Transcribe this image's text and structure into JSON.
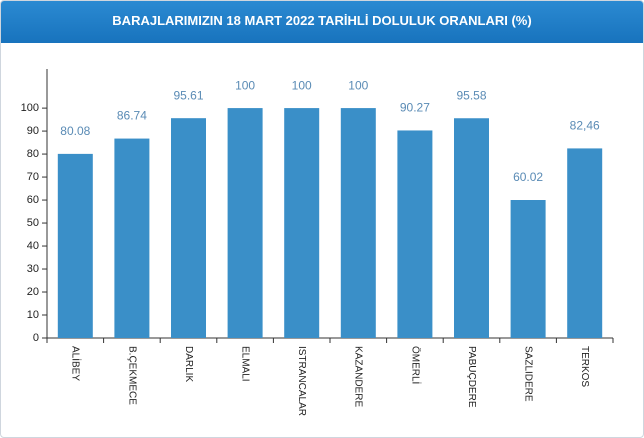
{
  "chart_data": {
    "type": "bar",
    "title": "BARAJLARIMIZIN 18 MART 2022 TARİHLİ DOLULUK ORANLARI (%)",
    "categories": [
      "ALİBEY",
      "B.ÇEKMECE",
      "DARLIK",
      "ELMALI",
      "ISTRANCALAR",
      "KAZANDERE",
      "ÖMERLİ",
      "PABUÇDERE",
      "SAZLIDERE",
      "TERKOS"
    ],
    "values": [
      80.08,
      86.74,
      95.61,
      100,
      100,
      100,
      90.27,
      95.58,
      60.02,
      82.46
    ],
    "value_labels": [
      "80.08",
      "86.74",
      "95.61",
      "100",
      "100",
      "100",
      "90.27",
      "95.58",
      "60.02",
      "82,46"
    ],
    "color": "#3a8fc8",
    "ylim": [
      0,
      117
    ],
    "yticks": [
      0,
      10,
      20,
      30,
      40,
      50,
      60,
      70,
      80,
      90,
      100
    ]
  }
}
